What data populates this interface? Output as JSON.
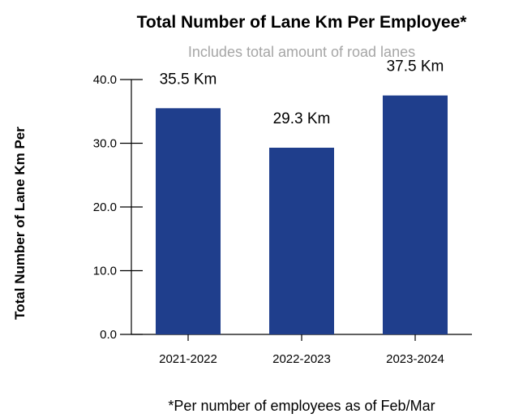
{
  "chart_data": {
    "type": "bar",
    "title": "Total Number of Lane Km Per Employee*",
    "subtitle": "Includes total amount of road lanes",
    "ylabel": "Total Number of Lane Km Per",
    "xlabel": "",
    "categories": [
      "2021-2022",
      "2022-2023",
      "2023-2024"
    ],
    "values": [
      35.5,
      29.3,
      37.5
    ],
    "data_labels": [
      "35.5 Km",
      "29.3 Km",
      "37.5 Km"
    ],
    "ylim": [
      0,
      40
    ],
    "yticks": [
      "0.0",
      "10.0",
      "20.0",
      "30.0",
      "40.0"
    ],
    "bar_color": "#1f3e8c",
    "grid": false,
    "legend": "none"
  },
  "footnote": "*Per number of employees as of Feb/Mar"
}
